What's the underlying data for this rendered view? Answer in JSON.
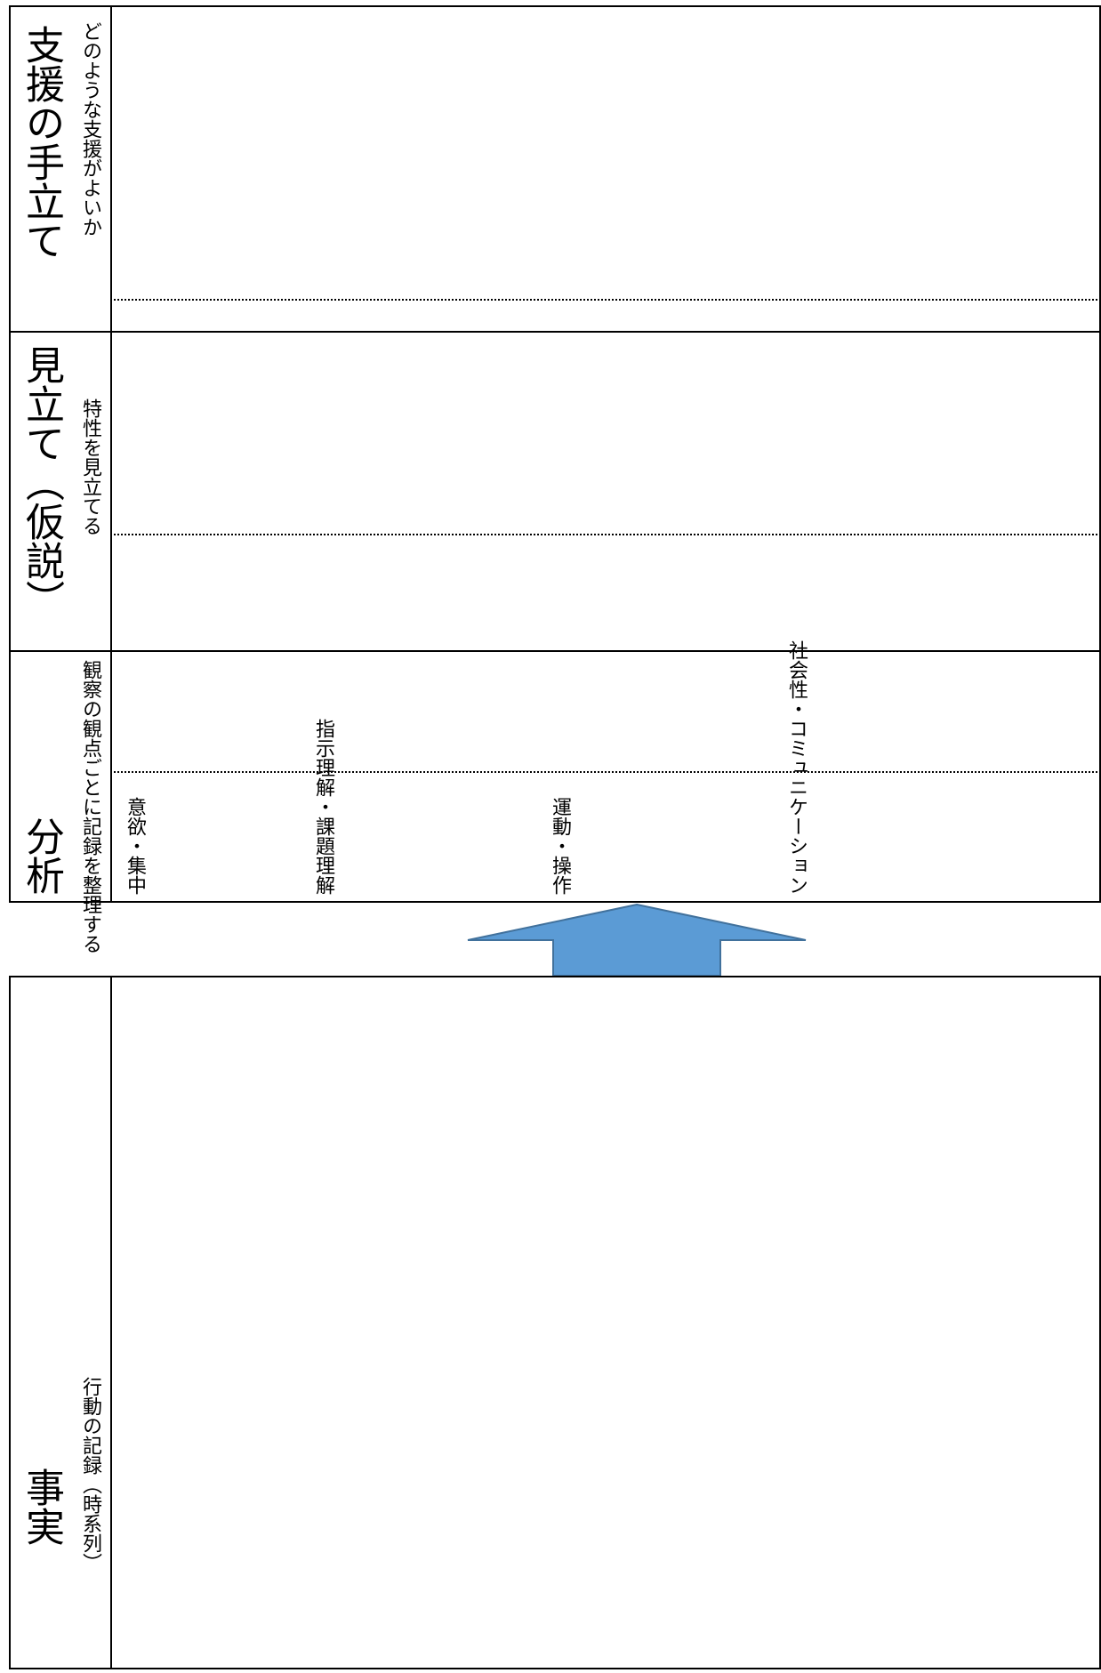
{
  "sections": {
    "support": {
      "title": "支援の手立て",
      "subtitle": "どのような支援がよいか"
    },
    "hypothesis": {
      "title": "見立て（仮説）",
      "subtitle": "特性を見立てる"
    },
    "analysis": {
      "title": "分析",
      "subtitle": "観察の観点ごとに記録を整理する",
      "categories": [
        "意欲・集中",
        "指示理解・課題理解",
        "運動・操作",
        "社会性・コミュニケーション"
      ]
    },
    "facts": {
      "title": "事実",
      "subtitle": "行動の記録（時系列）"
    }
  },
  "colors": {
    "border": "#000000",
    "arrow_fill": "#5b9bd5",
    "arrow_stroke": "#41719c"
  },
  "icons": {
    "arrow": "up-arrow-icon"
  }
}
